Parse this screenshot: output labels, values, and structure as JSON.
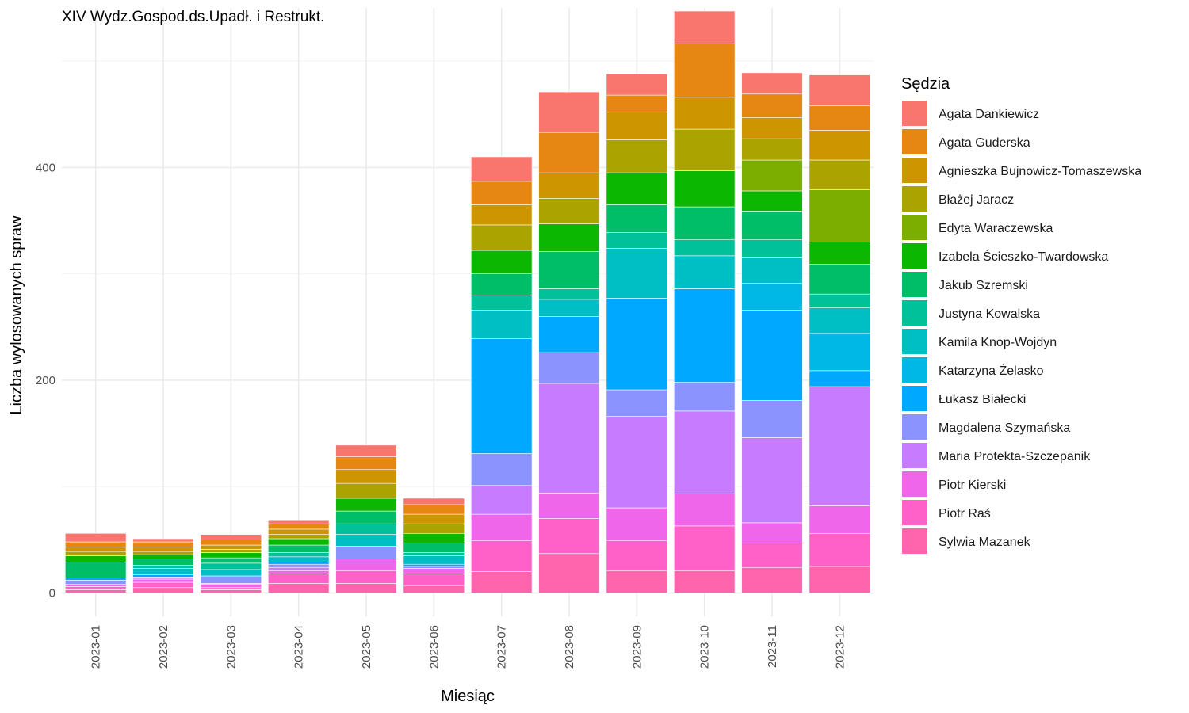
{
  "chart_data": {
    "type": "bar",
    "stacked": true,
    "title": "XIV Wydz.Gospod.ds.Upadł. i Restrukt.",
    "xlabel": "Miesiąc",
    "ylabel": "Liczba wylosowanych spraw",
    "ylim": [
      -22,
      550
    ],
    "yticks": [
      0,
      200,
      400
    ],
    "grid": true,
    "legend_title": "Sędzia",
    "legend_position": "right",
    "categories": [
      "2023-01",
      "2023-02",
      "2023-03",
      "2023-04",
      "2023-05",
      "2023-06",
      "2023-07",
      "2023-08",
      "2023-09",
      "2023-10",
      "2023-11",
      "2023-12"
    ],
    "series": [
      {
        "name": "Sylwia Mazanek",
        "color": "#FF65AC",
        "values": [
          3,
          5,
          3,
          9,
          9,
          7,
          20,
          37,
          21,
          21,
          24,
          25
        ]
      },
      {
        "name": "Piotr Raś",
        "color": "#FF61C9",
        "values": [
          3,
          5,
          2,
          9,
          12,
          11,
          29,
          33,
          28,
          42,
          23,
          31
        ]
      },
      {
        "name": "Piotr Kierski",
        "color": "#F066EA",
        "values": [
          2,
          3,
          3,
          3,
          11,
          5,
          25,
          24,
          31,
          30,
          19,
          26
        ]
      },
      {
        "name": "Maria Protekta-Szczepanik",
        "color": "#C77CFF",
        "values": [
          0,
          2,
          1,
          3,
          0,
          0,
          27,
          103,
          86,
          78,
          80,
          112
        ]
      },
      {
        "name": "Magdalena Szymańska",
        "color": "#8B93FF",
        "values": [
          4,
          0,
          7,
          3,
          12,
          2,
          30,
          29,
          25,
          27,
          35,
          0
        ]
      },
      {
        "name": "Łukasz Białecki",
        "color": "#00A9FF",
        "values": [
          2,
          2,
          0,
          2,
          0,
          2,
          108,
          34,
          86,
          88,
          85,
          15
        ]
      },
      {
        "name": "Katarzyna Żelasko",
        "color": "#00B8E5",
        "values": [
          0,
          0,
          0,
          0,
          0,
          0,
          0,
          0,
          0,
          0,
          25,
          35
        ]
      },
      {
        "name": "Kamila Knop-Wojdyn",
        "color": "#00BFC4",
        "values": [
          0,
          6,
          6,
          5,
          11,
          8,
          27,
          16,
          47,
          31,
          24,
          24
        ]
      },
      {
        "name": "Justyna Kowalska",
        "color": "#00C19A",
        "values": [
          0,
          3,
          6,
          4,
          10,
          3,
          14,
          10,
          15,
          15,
          17,
          13
        ]
      },
      {
        "name": "Jakub Szremski",
        "color": "#00BE67",
        "values": [
          15,
          6,
          5,
          7,
          12,
          9,
          20,
          35,
          26,
          31,
          27,
          28
        ]
      },
      {
        "name": "Izabela Ścieszko-Twardowska",
        "color": "#0CB702",
        "values": [
          6,
          4,
          5,
          6,
          12,
          9,
          22,
          26,
          30,
          34,
          19,
          21
        ]
      },
      {
        "name": "Edyta Waraczewska",
        "color": "#7CAE00",
        "values": [
          0,
          0,
          0,
          0,
          0,
          0,
          0,
          0,
          0,
          0,
          29,
          49
        ]
      },
      {
        "name": "Błażej Jaracz",
        "color": "#ABA300",
        "values": [
          4,
          3,
          3,
          4,
          14,
          9,
          24,
          24,
          31,
          39,
          20,
          28
        ]
      },
      {
        "name": "Agnieszka Bujnowicz-Tomaszewska",
        "color": "#CD9600",
        "values": [
          4,
          4,
          4,
          5,
          13,
          9,
          19,
          24,
          26,
          30,
          20,
          28
        ]
      },
      {
        "name": "Agata Guderska",
        "color": "#E68613",
        "values": [
          5,
          5,
          5,
          5,
          12,
          9,
          22,
          38,
          16,
          50,
          22,
          23
        ]
      },
      {
        "name": "Agata Dankiewicz",
        "color": "#F8766D",
        "values": [
          8,
          3,
          5,
          3,
          11,
          6,
          23,
          38,
          20,
          31,
          20,
          29
        ]
      }
    ]
  }
}
